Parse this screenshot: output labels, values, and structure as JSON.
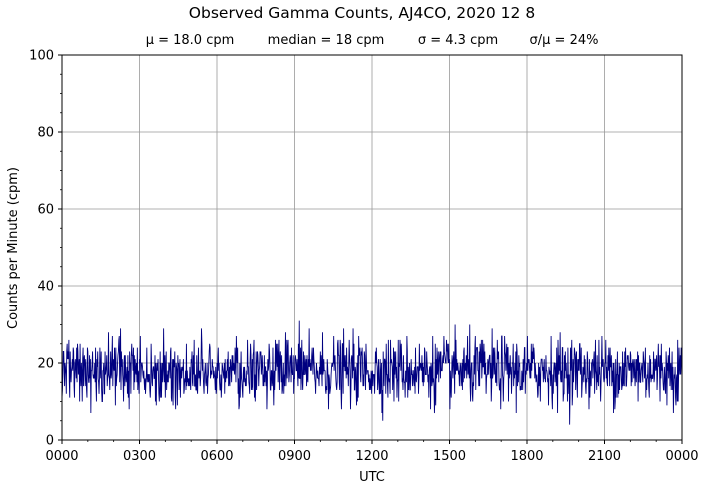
{
  "chart_data": {
    "type": "line",
    "title": "Observed Gamma Counts, AJ4CO, 2020 12 8",
    "stats": {
      "mean": "μ = 18.0 cpm",
      "median": "median = 18 cpm",
      "sigma": "σ = 4.3 cpm",
      "ratio": "σ/μ = 24%"
    },
    "xlabel": "UTC",
    "ylabel": "Counts per Minute (cpm)",
    "x_ticks": [
      {
        "hour": 0,
        "label": "0000"
      },
      {
        "hour": 3,
        "label": "0300"
      },
      {
        "hour": 6,
        "label": "0600"
      },
      {
        "hour": 9,
        "label": "0900"
      },
      {
        "hour": 12,
        "label": "1200"
      },
      {
        "hour": 15,
        "label": "1500"
      },
      {
        "hour": 18,
        "label": "1800"
      },
      {
        "hour": 21,
        "label": "2100"
      },
      {
        "hour": 24,
        "label": "0000"
      }
    ],
    "xlim_hours": [
      0,
      24
    ],
    "ylim": [
      0,
      100
    ],
    "y_ticks": [
      0,
      20,
      40,
      60,
      80,
      100
    ],
    "grid": true,
    "series": [
      {
        "color": "#000080",
        "points_per_minute": 1,
        "mean": 18.0,
        "median": 18,
        "sigma": 4.3,
        "min": 4,
        "max": 33
      }
    ],
    "colors": {
      "line": "#000080",
      "grid": "#999999",
      "axes": "#000000"
    }
  }
}
